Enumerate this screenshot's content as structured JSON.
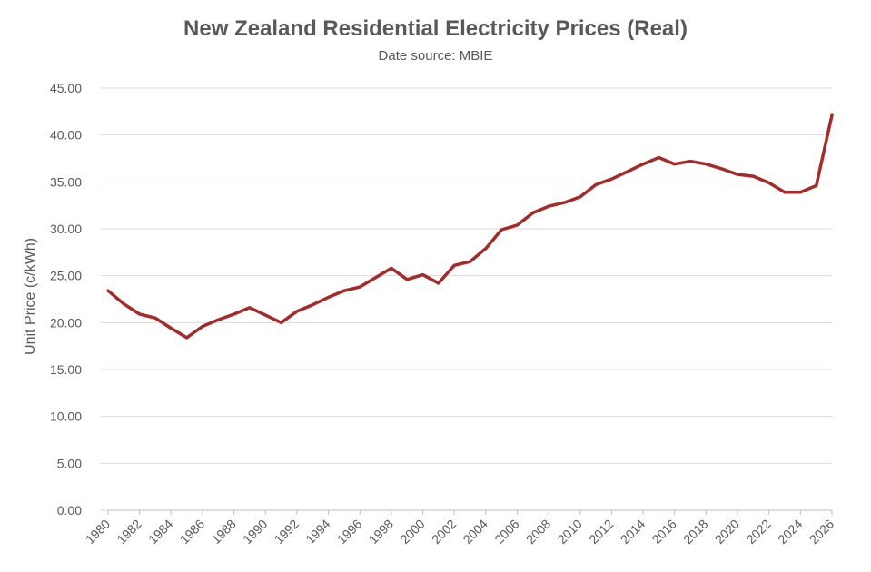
{
  "chart_data": {
    "type": "line",
    "title": "New Zealand Residential Electricity Prices (Real)",
    "subtitle": "Date source: MBIE",
    "xlabel": "",
    "ylabel": "Unit Price (c/kWh)",
    "ylim": [
      0,
      45
    ],
    "xlim": [
      1980,
      2026
    ],
    "y_ticks": [
      "0.00",
      "5.00",
      "10.00",
      "15.00",
      "20.00",
      "25.00",
      "30.00",
      "35.00",
      "40.00",
      "45.00"
    ],
    "x_ticks": [
      "1980",
      "1982",
      "1984",
      "1986",
      "1988",
      "1990",
      "1992",
      "1994",
      "1996",
      "1998",
      "2000",
      "2002",
      "2004",
      "2006",
      "2008",
      "2010",
      "2012",
      "2014",
      "2016",
      "2018",
      "2020",
      "2022",
      "2024",
      "2026"
    ],
    "grid": "horizontal",
    "series": [
      {
        "color": "#A52A2A",
        "x": [
          1980,
          1981,
          1982,
          1983,
          1984,
          1985,
          1986,
          1987,
          1988,
          1989,
          1990,
          1991,
          1992,
          1993,
          1994,
          1995,
          1996,
          1997,
          1998,
          1999,
          2000,
          2001,
          2002,
          2003,
          2004,
          2005,
          2006,
          2007,
          2008,
          2009,
          2010,
          2011,
          2012,
          2013,
          2014,
          2015,
          2016,
          2017,
          2018,
          2019,
          2020,
          2021,
          2022,
          2023,
          2024,
          2025,
          2026
        ],
        "values": [
          23.4,
          22.0,
          20.9,
          20.5,
          19.4,
          18.4,
          19.6,
          20.3,
          20.9,
          21.6,
          20.8,
          20.0,
          21.2,
          21.9,
          22.7,
          23.4,
          23.8,
          24.8,
          25.8,
          24.6,
          25.1,
          24.2,
          26.1,
          26.5,
          27.9,
          29.9,
          30.4,
          31.7,
          32.4,
          32.8,
          33.4,
          34.7,
          35.3,
          36.1,
          36.9,
          37.6,
          36.9,
          37.2,
          36.9,
          36.4,
          35.8,
          35.6,
          34.9,
          33.9,
          33.9,
          34.6,
          42.1
        ]
      }
    ]
  }
}
